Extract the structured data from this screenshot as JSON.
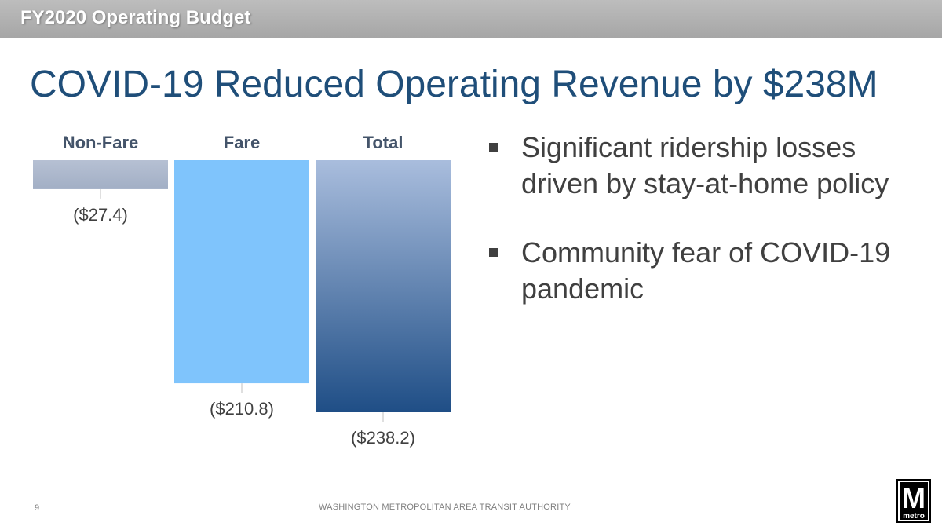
{
  "header": {
    "title": "FY2020 Operating Budget"
  },
  "slide": {
    "title": "COVID-19 Reduced Operating Revenue by $238M"
  },
  "chart_data": {
    "type": "bar",
    "categories": [
      "Non-Fare",
      "Fare",
      "Total"
    ],
    "values": [
      -27.4,
      -210.8,
      -238.2
    ],
    "value_labels": [
      "($27.4)",
      "($210.8)",
      "($238.2)"
    ],
    "ylim": [
      -238.2,
      0
    ],
    "grid": false,
    "legend": "none",
    "colors": [
      "#a6b3c9",
      "#7fc4fc",
      "#1f4e86"
    ]
  },
  "bullets": [
    {
      "text": "Significant ridership losses driven by stay-at-home policy"
    },
    {
      "text": "Community fear of COVID-19 pandemic"
    }
  ],
  "footer": {
    "page_number": "9",
    "organization": "WASHINGTON METROPOLITAN AREA TRANSIT AUTHORITY"
  },
  "logo": {
    "letter": "M",
    "word": "metro"
  }
}
